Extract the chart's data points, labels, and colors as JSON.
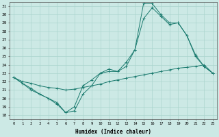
{
  "xlabel": "Humidex (Indice chaleur)",
  "ylabel": "",
  "background_color": "#cce9e5",
  "grid_color": "#aad4ce",
  "line_color": "#1a7a6e",
  "xlim": [
    -0.5,
    23.5
  ],
  "ylim": [
    17.5,
    31.5
  ],
  "xticks": [
    0,
    1,
    2,
    3,
    4,
    5,
    6,
    7,
    8,
    9,
    10,
    11,
    12,
    13,
    14,
    15,
    16,
    17,
    18,
    19,
    20,
    21,
    22,
    23
  ],
  "yticks": [
    18,
    19,
    20,
    21,
    22,
    23,
    24,
    25,
    26,
    27,
    28,
    29,
    30,
    31
  ],
  "series": [
    {
      "x": [
        0,
        1,
        2,
        3,
        4,
        5,
        6,
        7,
        8,
        9,
        10,
        11,
        12,
        13,
        14,
        15,
        16,
        17,
        18,
        19,
        20,
        21,
        22,
        23
      ],
      "y": [
        22.5,
        21.8,
        21.2,
        20.5,
        20.0,
        19.3,
        18.3,
        19.0,
        21.5,
        22.2,
        23.0,
        23.2,
        23.2,
        24.3,
        25.8,
        31.3,
        31.3,
        30.0,
        29.0,
        29.0,
        27.5,
        25.0,
        23.8,
        23.0
      ]
    },
    {
      "x": [
        0,
        1,
        2,
        3,
        4,
        5,
        6,
        7,
        8,
        9,
        10,
        11,
        12,
        13,
        14,
        15,
        16,
        17,
        18,
        19,
        20,
        21,
        22,
        23
      ],
      "y": [
        22.5,
        21.8,
        21.0,
        20.5,
        20.0,
        19.5,
        18.3,
        18.5,
        20.5,
        21.5,
        23.0,
        23.5,
        23.2,
        23.8,
        25.8,
        29.5,
        30.8,
        29.8,
        28.8,
        29.0,
        27.5,
        25.2,
        23.8,
        23.0
      ]
    },
    {
      "x": [
        0,
        1,
        2,
        3,
        4,
        5,
        6,
        7,
        8,
        9,
        10,
        11,
        12,
        13,
        14,
        15,
        16,
        17,
        18,
        19,
        20,
        21,
        22,
        23
      ],
      "y": [
        22.5,
        22.0,
        21.8,
        21.5,
        21.3,
        21.2,
        21.0,
        21.1,
        21.3,
        21.5,
        21.7,
        22.0,
        22.2,
        22.4,
        22.6,
        22.8,
        23.0,
        23.2,
        23.4,
        23.6,
        23.7,
        23.8,
        24.0,
        23.0
      ]
    }
  ]
}
